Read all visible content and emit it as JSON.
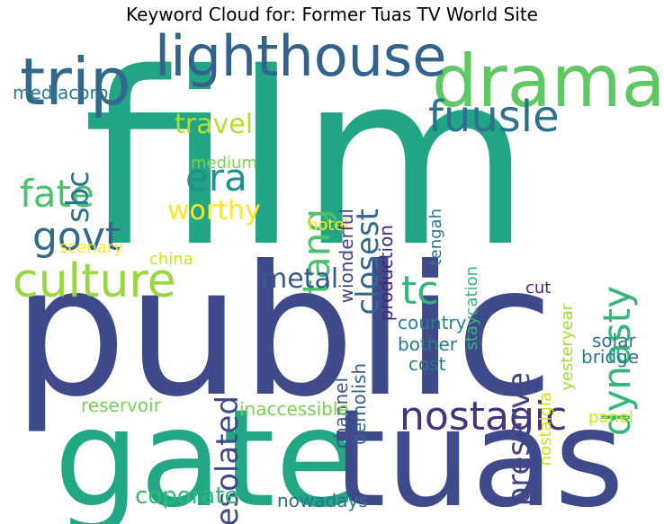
{
  "title": "Keyword Cloud for: Former Tuas TV World Site",
  "words": [
    {
      "text": "film",
      "color": "#21a585",
      "vertical": false
    },
    {
      "text": "public",
      "color": "#3f4a8a",
      "vertical": false
    },
    {
      "text": "gate",
      "color": "#22a784",
      "vertical": false
    },
    {
      "text": "tuas",
      "color": "#3e4a89",
      "vertical": false
    },
    {
      "text": "drama",
      "color": "#5ec962",
      "vertical": false
    },
    {
      "text": "lighthouse",
      "color": "#33638d",
      "vertical": false
    },
    {
      "text": "trip",
      "color": "#31688e",
      "vertical": false
    },
    {
      "text": "fuusle",
      "color": "#2c728e",
      "vertical": false
    },
    {
      "text": "nostagic",
      "color": "#46337e",
      "vertical": false
    },
    {
      "text": "culture",
      "color": "#98d83e",
      "vertical": false
    },
    {
      "text": "govt",
      "color": "#31688e",
      "vertical": false
    },
    {
      "text": "fate",
      "color": "#4ac16d",
      "vertical": false
    },
    {
      "text": "era",
      "color": "#21918c",
      "vertical": false
    },
    {
      "text": "tc",
      "color": "#35b779",
      "vertical": false
    },
    {
      "text": "tang",
      "color": "#4ac16d",
      "vertical": true
    },
    {
      "text": "dynasty",
      "color": "#35b779",
      "vertical": true
    },
    {
      "text": "closest",
      "color": "#31688e",
      "vertical": true
    },
    {
      "text": "sbc",
      "color": "#2c728e",
      "vertical": true
    },
    {
      "text": "desolated",
      "color": "#3e4a89",
      "vertical": true
    },
    {
      "text": "preserve",
      "color": "#414487",
      "vertical": true
    },
    {
      "text": "travel",
      "color": "#b5de2b",
      "vertical": false
    },
    {
      "text": "worthy",
      "color": "#fde725",
      "vertical": false
    },
    {
      "text": "metal",
      "color": "#38598c",
      "vertical": false
    },
    {
      "text": "coporate",
      "color": "#35b779",
      "vertical": false
    },
    {
      "text": "mediacorp",
      "color": "#2a788e",
      "vertical": false
    },
    {
      "text": "medium",
      "color": "#7ad151",
      "vertical": false
    },
    {
      "text": "hotel",
      "color": "#fde725",
      "vertical": false
    },
    {
      "text": "scenary",
      "color": "#fde725",
      "vertical": false
    },
    {
      "text": "china",
      "color": "#d2e21b",
      "vertical": false
    },
    {
      "text": "wionderful",
      "color": "#414487",
      "vertical": true
    },
    {
      "text": "production",
      "color": "#482878",
      "vertical": true
    },
    {
      "text": "tengah",
      "color": "#2a788e",
      "vertical": true
    },
    {
      "text": "staycation",
      "color": "#35b779",
      "vertical": true
    },
    {
      "text": "yesteryear",
      "color": "#a5db36",
      "vertical": true
    },
    {
      "text": "cut",
      "color": "#482878",
      "vertical": false
    },
    {
      "text": "country",
      "color": "#26828e",
      "vertical": false
    },
    {
      "text": "bother",
      "color": "#2a788e",
      "vertical": false
    },
    {
      "text": "cost",
      "color": "#2a788e",
      "vertical": false
    },
    {
      "text": "channel",
      "color": "#38598c",
      "vertical": true
    },
    {
      "text": "demolish",
      "color": "#33638d",
      "vertical": true
    },
    {
      "text": "nostalgia",
      "color": "#d2e21b",
      "vertical": true
    },
    {
      "text": "solar",
      "color": "#2c728e",
      "vertical": false
    },
    {
      "text": "bridge",
      "color": "#2a788e",
      "vertical": false
    },
    {
      "text": "panel",
      "color": "#d2e21b",
      "vertical": false
    },
    {
      "text": "reservoir",
      "color": "#7ad151",
      "vertical": false
    },
    {
      "text": "inaccessible",
      "color": "#7ad151",
      "vertical": false
    },
    {
      "text": "nowadays",
      "color": "#2c728e",
      "vertical": false
    }
  ]
}
